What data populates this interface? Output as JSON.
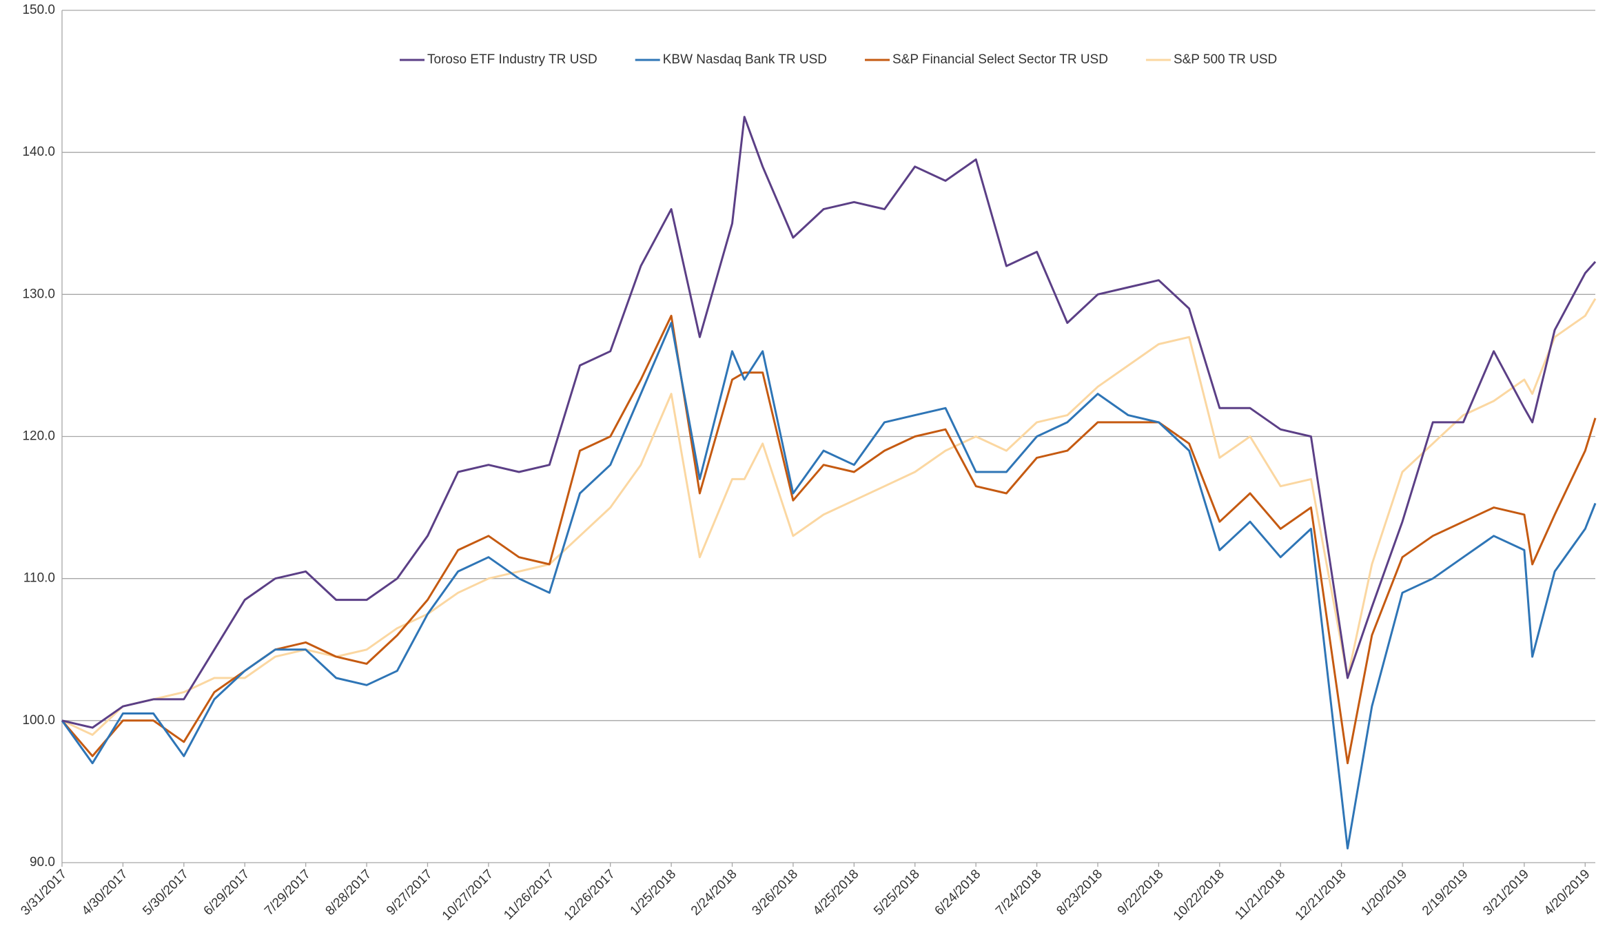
{
  "chart_data": {
    "type": "line",
    "x": [
      "3/31/2017",
      "4/15/2017",
      "4/30/2017",
      "5/15/2017",
      "5/30/2017",
      "6/14/2017",
      "6/29/2017",
      "7/14/2017",
      "7/29/2017",
      "8/13/2017",
      "8/28/2017",
      "9/12/2017",
      "9/27/2017",
      "10/12/2017",
      "10/27/2017",
      "11/11/2017",
      "11/26/2017",
      "12/11/2017",
      "12/26/2017",
      "1/10/2018",
      "1/25/2018",
      "2/8/2018",
      "2/24/2018",
      "3/2/2018",
      "3/11/2018",
      "3/26/2018",
      "4/10/2018",
      "4/25/2018",
      "5/10/2018",
      "5/25/2018",
      "6/9/2018",
      "6/24/2018",
      "7/9/2018",
      "7/24/2018",
      "8/8/2018",
      "8/23/2018",
      "9/7/2018",
      "9/22/2018",
      "10/7/2018",
      "10/22/2018",
      "11/6/2018",
      "11/21/2018",
      "12/6/2018",
      "12/24/2018",
      "1/5/2019",
      "1/20/2019",
      "2/4/2019",
      "2/19/2019",
      "3/6/2019",
      "3/21/2019",
      "3/25/2019",
      "4/5/2019",
      "4/20/2019",
      "4/25/2019"
    ],
    "series": [
      {
        "name": "Toroso ETF Industry TR USD",
        "color": "#5b3f86",
        "values": [
          100,
          99.5,
          101,
          101.5,
          101.5,
          105,
          108.5,
          110,
          110.5,
          108.5,
          108.5,
          110,
          113,
          117.5,
          118,
          117.5,
          118,
          125,
          126,
          132,
          136,
          127,
          135,
          142.5,
          139,
          134,
          136,
          136.5,
          136,
          139,
          138,
          139.5,
          132,
          133,
          128,
          130,
          130.5,
          131,
          129,
          122,
          122,
          120.5,
          120,
          103,
          108,
          114,
          121,
          121,
          126,
          122,
          121,
          127.5,
          131.5,
          132.3
        ]
      },
      {
        "name": "KBW Nasdaq Bank TR USD",
        "color": "#2e75b6",
        "values": [
          100,
          97,
          100.5,
          100.5,
          97.5,
          101.5,
          103.5,
          105,
          105,
          103,
          102.5,
          103.5,
          107.5,
          110.5,
          111.5,
          110,
          109,
          116,
          118,
          123,
          128,
          117,
          126,
          124,
          126,
          116,
          119,
          118,
          121,
          121.5,
          122,
          117.5,
          117.5,
          120,
          121,
          123,
          121.5,
          121,
          119,
          112,
          114,
          111.5,
          113.5,
          91,
          101,
          109,
          110,
          111.5,
          113,
          112,
          104.5,
          110.5,
          113.5,
          115.3
        ]
      },
      {
        "name": "S&P Financial Select Sector TR USD",
        "color": "#c55a11",
        "values": [
          100,
          97.5,
          100,
          100,
          98.5,
          102,
          103.5,
          105,
          105.5,
          104.5,
          104,
          106,
          108.5,
          112,
          113,
          111.5,
          111,
          119,
          120,
          124,
          128.5,
          116,
          124,
          124.5,
          124.5,
          115.5,
          118,
          117.5,
          119,
          120,
          120.5,
          116.5,
          116,
          118.5,
          119,
          121,
          121,
          121,
          119.5,
          114,
          116,
          113.5,
          115,
          97,
          106,
          111.5,
          113,
          114,
          115,
          114.5,
          111,
          114.5,
          119,
          121.3
        ]
      },
      {
        "name": "S&P 500 TR USD",
        "color": "#fbd7a1",
        "values": [
          100,
          99,
          101,
          101.5,
          102,
          103,
          103,
          104.5,
          105,
          104.5,
          105,
          106.5,
          107.5,
          109,
          110,
          110.5,
          111,
          113,
          115,
          118,
          123,
          111.5,
          117,
          117,
          119.5,
          113,
          114.5,
          115.5,
          116.5,
          117.5,
          119,
          120,
          119,
          121,
          121.5,
          123.5,
          125,
          126.5,
          127,
          118.5,
          120,
          116.5,
          117,
          103,
          111,
          117.5,
          119.5,
          121.5,
          122.5,
          124,
          123,
          127,
          128.5,
          129.7
        ]
      }
    ],
    "xlim": [
      "3/31/2017",
      "4/25/2019"
    ],
    "xticks": [
      "3/31/2017",
      "4/30/2017",
      "5/30/2017",
      "6/29/2017",
      "7/29/2017",
      "8/28/2017",
      "9/27/2017",
      "10/27/2017",
      "11/26/2017",
      "12/26/2017",
      "1/25/2018",
      "2/24/2018",
      "3/26/2018",
      "4/25/2018",
      "5/25/2018",
      "6/24/2018",
      "7/24/2018",
      "8/23/2018",
      "9/22/2018",
      "10/22/2018",
      "11/21/2018",
      "12/21/2018",
      "1/20/2019",
      "2/19/2019",
      "3/21/2019",
      "4/20/2019"
    ],
    "ylim": [
      90,
      150
    ],
    "yticks": [
      {
        "value": 90,
        "label": "90.0"
      },
      {
        "value": 100,
        "label": "100.0"
      },
      {
        "value": 110,
        "label": "110.0"
      },
      {
        "value": 120,
        "label": "120.0"
      },
      {
        "value": 130,
        "label": "130.0"
      },
      {
        "value": 140,
        "label": "140.0"
      },
      {
        "value": 150,
        "label": "150.0"
      }
    ],
    "grid": true,
    "legend": "top"
  }
}
